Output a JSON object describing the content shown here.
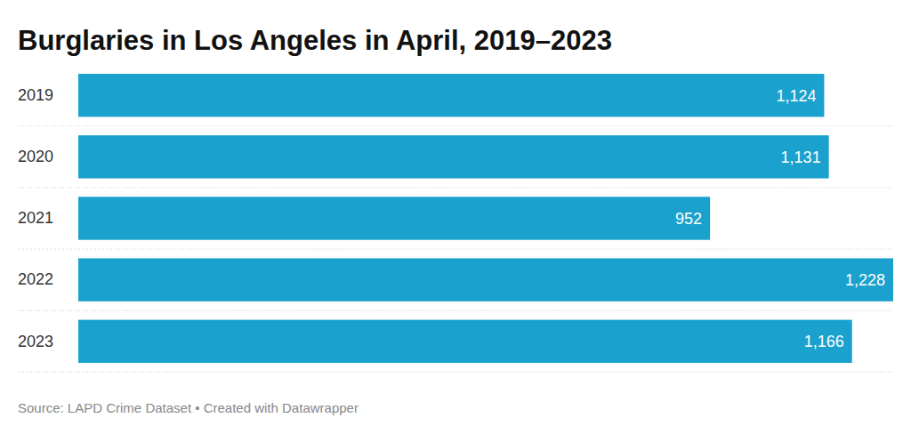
{
  "chart_data": {
    "type": "bar",
    "orientation": "horizontal",
    "title": "Burglaries in Los Angeles in April, 2019–2023",
    "categories": [
      "2019",
      "2020",
      "2021",
      "2022",
      "2023"
    ],
    "values": [
      1124,
      1131,
      952,
      1228,
      1166
    ],
    "value_labels": [
      "1,124",
      "1,131",
      "952",
      "1,228",
      "1,166"
    ],
    "data_labels": true,
    "tick_labels": "y",
    "color": "#1aa1cd",
    "xlim": [
      0,
      1228
    ],
    "source": "Source: LAPD Crime Dataset • Created with Datawrapper"
  }
}
